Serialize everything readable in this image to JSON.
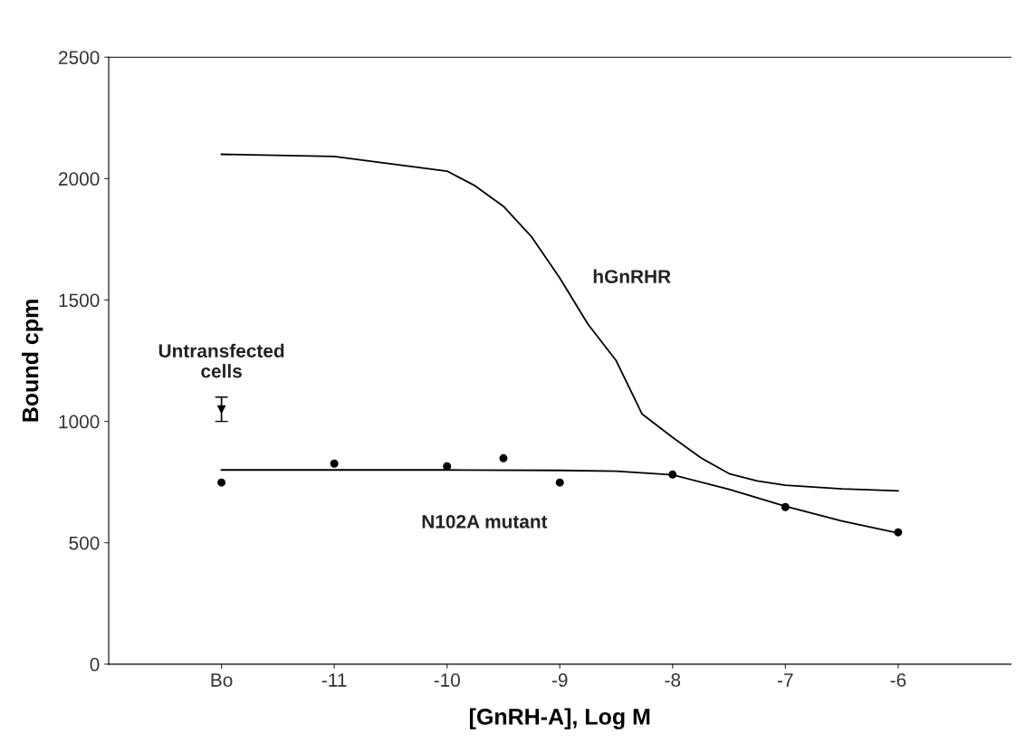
{
  "chart_data": {
    "type": "line",
    "xlabel": "[GnRH-A], Log M",
    "ylabel": "Bound cpm",
    "xlim": [
      -13,
      -5
    ],
    "xticks": [
      {
        "value": -12,
        "label": "Bo"
      },
      -11,
      -10,
      -9,
      -8,
      -7,
      -6
    ],
    "ylim": [
      0,
      2500
    ],
    "yticks": [
      0,
      500,
      1000,
      1500,
      2000,
      2500
    ],
    "grid": false,
    "series": [
      {
        "name": "hGnRHR",
        "color": "#000000",
        "marker": "none",
        "x": [
          -12,
          -11,
          -10,
          -9.75,
          -9.5,
          -9.25,
          -9,
          -8.75,
          -8.5,
          -8.27,
          -8,
          -7.75,
          -7.5,
          -7.25,
          -7,
          -6.5,
          -6
        ],
        "values": [
          2100,
          2091,
          2031,
          1970,
          1886,
          1760,
          1590,
          1400,
          1250,
          1030,
          934,
          850,
          785,
          755,
          737,
          722,
          714
        ]
      },
      {
        "name": "N102A mutant",
        "color": "#000000",
        "marker": "none",
        "x": [
          -12,
          -11,
          -10,
          -9,
          -8.5,
          -8,
          -7.5,
          -7,
          -6.5,
          -6
        ],
        "values": [
          800,
          800,
          800,
          798,
          795,
          780,
          720,
          650,
          590,
          540
        ]
      },
      {
        "type": "scatter",
        "color": "#000000",
        "marker": "circle",
        "x": [
          -12,
          -11,
          -10,
          -9.5,
          -9,
          -8,
          -7,
          -6
        ],
        "values": [
          748,
          826,
          815,
          848,
          748,
          781,
          647,
          543
        ]
      },
      {
        "type": "scatter",
        "name": "Untransfected\ncells",
        "color": "#000000",
        "marker": "triangle",
        "x": [
          -12
        ],
        "values": [
          1050
        ],
        "errors": [
          50
        ]
      }
    ]
  }
}
